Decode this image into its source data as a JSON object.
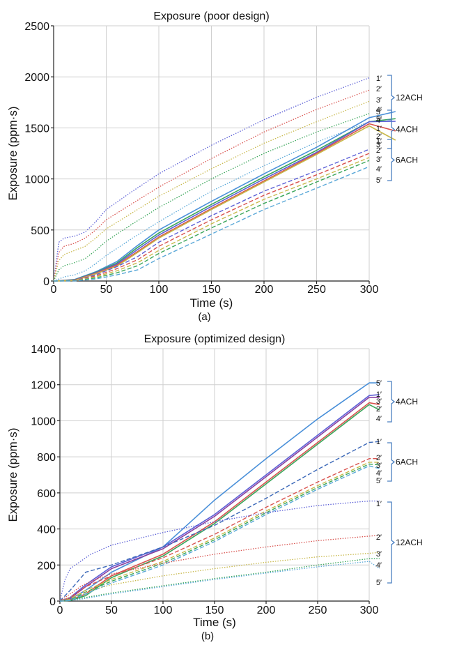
{
  "chart_data": [
    {
      "type": "line",
      "panel_label": "(a)",
      "title": "Exposure (poor design)",
      "xlabel": "Time (s)",
      "ylabel": "Exposure (ppm·s)",
      "xlim": [
        0,
        300
      ],
      "ylim": [
        0,
        2500
      ],
      "xticks": [
        0,
        50,
        100,
        150,
        200,
        250,
        300
      ],
      "yticks": [
        0,
        500,
        1000,
        1500,
        2000,
        2500
      ],
      "grid": true,
      "groups": [
        {
          "name": "12ACH",
          "style": "dotted"
        },
        {
          "name": "4ACH",
          "style": "solid"
        },
        {
          "name": "6ACH",
          "style": "dashed"
        }
      ],
      "series": [
        {
          "name": "1′",
          "group": "12ACH",
          "style": "dotted",
          "color": "#5b5fd6",
          "x": [
            0,
            5,
            10,
            20,
            30,
            40,
            50,
            75,
            100,
            150,
            200,
            250,
            300
          ],
          "y": [
            0,
            380,
            420,
            440,
            480,
            580,
            700,
            880,
            1050,
            1330,
            1580,
            1800,
            1990
          ]
        },
        {
          "name": "2′",
          "group": "12ACH",
          "style": "dotted",
          "color": "#d9534f",
          "x": [
            0,
            5,
            10,
            20,
            30,
            40,
            50,
            75,
            100,
            150,
            200,
            250,
            300
          ],
          "y": [
            0,
            280,
            340,
            370,
            420,
            500,
            600,
            760,
            920,
            1200,
            1460,
            1680,
            1870
          ]
        },
        {
          "name": "3′",
          "group": "12ACH",
          "style": "dotted",
          "color": "#c8b84a",
          "x": [
            0,
            5,
            10,
            20,
            30,
            40,
            50,
            75,
            100,
            150,
            200,
            250,
            300
          ],
          "y": [
            0,
            200,
            260,
            300,
            340,
            420,
            510,
            670,
            830,
            1100,
            1350,
            1560,
            1760
          ]
        },
        {
          "name": "4′",
          "group": "12ACH",
          "style": "dotted",
          "color": "#3aa65a",
          "x": [
            0,
            5,
            10,
            20,
            30,
            40,
            50,
            75,
            100,
            150,
            200,
            250,
            300
          ],
          "y": [
            0,
            110,
            150,
            180,
            220,
            300,
            390,
            560,
            720,
            1000,
            1250,
            1460,
            1640
          ]
        },
        {
          "name": "5′",
          "group": "12ACH",
          "style": "dotted",
          "color": "#5aa8d8",
          "x": [
            0,
            5,
            10,
            20,
            30,
            40,
            50,
            75,
            100,
            150,
            200,
            250,
            300
          ],
          "y": [
            0,
            20,
            40,
            60,
            100,
            170,
            250,
            420,
            580,
            880,
            1130,
            1360,
            1560
          ]
        },
        {
          "name": "5′",
          "group": "4ACH",
          "style": "solid",
          "color": "#4a90d9",
          "x": [
            0,
            20,
            40,
            60,
            80,
            100,
            150,
            200,
            250,
            300,
            325
          ],
          "y": [
            0,
            15,
            90,
            190,
            350,
            500,
            780,
            1050,
            1310,
            1600,
            1660
          ]
        },
        {
          "name": "4′",
          "group": "4ACH",
          "style": "solid",
          "color": "#3aa65a",
          "x": [
            0,
            20,
            40,
            60,
            80,
            100,
            150,
            200,
            250,
            300,
            325
          ],
          "y": [
            0,
            12,
            85,
            175,
            330,
            470,
            750,
            1020,
            1280,
            1560,
            1590
          ]
        },
        {
          "name": "1′",
          "group": "4ACH",
          "style": "solid",
          "color": "#5b5fd6",
          "x": [
            0,
            20,
            40,
            60,
            80,
            100,
            150,
            200,
            250,
            300,
            325
          ],
          "y": [
            0,
            10,
            80,
            165,
            310,
            450,
            730,
            1000,
            1260,
            1560,
            1565
          ]
        },
        {
          "name": "2′",
          "group": "4ACH",
          "style": "solid",
          "color": "#d9534f",
          "x": [
            0,
            20,
            40,
            60,
            80,
            100,
            150,
            200,
            250,
            300,
            325
          ],
          "y": [
            0,
            8,
            75,
            155,
            290,
            430,
            710,
            980,
            1250,
            1540,
            1470
          ]
        },
        {
          "name": "3′",
          "group": "4ACH",
          "style": "solid",
          "color": "#c8b84a",
          "x": [
            0,
            20,
            40,
            60,
            80,
            100,
            150,
            200,
            250,
            300,
            325
          ],
          "y": [
            0,
            5,
            70,
            145,
            280,
            420,
            700,
            970,
            1240,
            1520,
            1380
          ]
        },
        {
          "name": "1′",
          "group": "6ACH",
          "style": "dashed",
          "color": "#5b5fd6",
          "x": [
            0,
            20,
            40,
            60,
            80,
            100,
            150,
            200,
            250,
            300
          ],
          "y": [
            0,
            5,
            60,
            140,
            240,
            380,
            640,
            880,
            1080,
            1290
          ]
        },
        {
          "name": "2′",
          "group": "6ACH",
          "style": "dashed",
          "color": "#d9534f",
          "x": [
            0,
            20,
            40,
            60,
            80,
            100,
            150,
            200,
            250,
            300
          ],
          "y": [
            0,
            4,
            50,
            120,
            210,
            340,
            600,
            840,
            1040,
            1250
          ]
        },
        {
          "name": "3′",
          "group": "6ACH",
          "style": "dashed",
          "color": "#c8b84a",
          "x": [
            0,
            20,
            40,
            60,
            80,
            100,
            150,
            200,
            250,
            300
          ],
          "y": [
            0,
            3,
            40,
            100,
            180,
            300,
            560,
            800,
            1000,
            1210
          ]
        },
        {
          "name": "4′",
          "group": "6ACH",
          "style": "dashed",
          "color": "#3aa65a",
          "x": [
            0,
            20,
            40,
            60,
            80,
            100,
            150,
            200,
            250,
            300
          ],
          "y": [
            0,
            2,
            30,
            80,
            150,
            270,
            520,
            760,
            970,
            1180
          ]
        },
        {
          "name": "5′",
          "group": "6ACH",
          "style": "dashed",
          "color": "#5aa8d8",
          "x": [
            0,
            20,
            40,
            60,
            80,
            100,
            150,
            200,
            250,
            300
          ],
          "y": [
            0,
            1,
            20,
            60,
            110,
            220,
            460,
            700,
            910,
            1120
          ]
        }
      ]
    },
    {
      "type": "line",
      "panel_label": "(b)",
      "title": "Exposure (optimized design)",
      "xlabel": "Time (s)",
      "ylabel": "Exposure (ppm·s)",
      "xlim": [
        0,
        300
      ],
      "ylim": [
        0,
        1400
      ],
      "xticks": [
        0,
        50,
        100,
        150,
        200,
        250,
        300
      ],
      "yticks": [
        0,
        200,
        400,
        600,
        800,
        1000,
        1200,
        1400
      ],
      "grid": true,
      "groups": [
        {
          "name": "4ACH",
          "style": "solid"
        },
        {
          "name": "6ACH",
          "style": "dashed"
        },
        {
          "name": "12ACH",
          "style": "dotted"
        }
      ],
      "series": [
        {
          "name": "5′",
          "group": "4ACH",
          "style": "solid",
          "color": "#4a90d9",
          "x": [
            0,
            10,
            25,
            50,
            100,
            150,
            200,
            250,
            300,
            310
          ],
          "y": [
            0,
            10,
            60,
            160,
            300,
            560,
            790,
            1010,
            1210,
            1210
          ]
        },
        {
          "name": "1′",
          "group": "4ACH",
          "style": "solid",
          "color": "#5b5fd6",
          "x": [
            0,
            10,
            25,
            50,
            100,
            150,
            200,
            250,
            300,
            310
          ],
          "y": [
            0,
            20,
            90,
            190,
            300,
            480,
            700,
            920,
            1140,
            1145
          ]
        },
        {
          "name": "3′",
          "group": "4ACH",
          "style": "solid",
          "color": "#8a3fa0",
          "x": [
            0,
            10,
            25,
            50,
            100,
            150,
            200,
            250,
            300,
            310
          ],
          "y": [
            0,
            15,
            80,
            180,
            290,
            470,
            690,
            910,
            1130,
            1130
          ]
        },
        {
          "name": "2′",
          "group": "4ACH",
          "style": "solid",
          "color": "#d9534f",
          "x": [
            0,
            10,
            25,
            50,
            100,
            150,
            200,
            250,
            300,
            310
          ],
          "y": [
            0,
            5,
            40,
            140,
            260,
            440,
            660,
            880,
            1100,
            1090
          ]
        },
        {
          "name": "4′",
          "group": "4ACH",
          "style": "solid",
          "color": "#3aa65a",
          "x": [
            0,
            10,
            25,
            50,
            100,
            150,
            200,
            250,
            300,
            310
          ],
          "y": [
            0,
            3,
            30,
            130,
            250,
            430,
            650,
            870,
            1090,
            1060
          ]
        },
        {
          "name": "1′",
          "group": "6ACH",
          "style": "dashed",
          "color": "#3b68b8",
          "x": [
            0,
            10,
            25,
            50,
            100,
            150,
            200,
            250,
            300,
            310
          ],
          "y": [
            0,
            60,
            160,
            200,
            300,
            420,
            570,
            730,
            880,
            885
          ]
        },
        {
          "name": "2′",
          "group": "6ACH",
          "style": "dashed",
          "color": "#d9534f",
          "x": [
            0,
            10,
            25,
            50,
            100,
            150,
            200,
            250,
            300,
            310
          ],
          "y": [
            0,
            20,
            80,
            140,
            240,
            370,
            520,
            660,
            790,
            790
          ]
        },
        {
          "name": "3′",
          "group": "6ACH",
          "style": "dashed",
          "color": "#c8b84a",
          "x": [
            0,
            10,
            25,
            50,
            100,
            150,
            200,
            250,
            300,
            310
          ],
          "y": [
            0,
            10,
            60,
            120,
            220,
            350,
            500,
            640,
            770,
            770
          ]
        },
        {
          "name": "4′",
          "group": "6ACH",
          "style": "dashed",
          "color": "#3aa65a",
          "x": [
            0,
            10,
            25,
            50,
            100,
            150,
            200,
            250,
            300,
            310
          ],
          "y": [
            0,
            5,
            50,
            110,
            210,
            340,
            490,
            630,
            760,
            755
          ]
        },
        {
          "name": "5′",
          "group": "6ACH",
          "style": "dashed",
          "color": "#5aa8d8",
          "x": [
            0,
            10,
            25,
            50,
            100,
            150,
            200,
            250,
            300,
            310
          ],
          "y": [
            0,
            3,
            40,
            100,
            200,
            330,
            480,
            620,
            750,
            735
          ]
        },
        {
          "name": "1′",
          "group": "12ACH",
          "style": "dotted",
          "color": "#5b5fd6",
          "x": [
            0,
            5,
            10,
            20,
            30,
            50,
            100,
            150,
            200,
            250,
            300,
            310
          ],
          "y": [
            0,
            120,
            180,
            220,
            260,
            310,
            380,
            440,
            490,
            530,
            555,
            555
          ]
        },
        {
          "name": "2′",
          "group": "12ACH",
          "style": "dotted",
          "color": "#d9534f",
          "x": [
            0,
            10,
            20,
            30,
            50,
            100,
            150,
            200,
            250,
            300,
            310
          ],
          "y": [
            0,
            40,
            80,
            110,
            150,
            210,
            260,
            300,
            335,
            360,
            365
          ]
        },
        {
          "name": "3′",
          "group": "12ACH",
          "style": "dotted",
          "color": "#c8b84a",
          "x": [
            0,
            10,
            20,
            30,
            50,
            100,
            150,
            200,
            250,
            300,
            310
          ],
          "y": [
            0,
            20,
            40,
            60,
            90,
            140,
            180,
            215,
            245,
            265,
            270
          ]
        },
        {
          "name": "4′",
          "group": "12ACH",
          "style": "dotted",
          "color": "#3aa65a",
          "x": [
            0,
            10,
            20,
            30,
            50,
            100,
            150,
            200,
            250,
            300,
            310
          ],
          "y": [
            0,
            5,
            15,
            25,
            45,
            85,
            125,
            160,
            200,
            235,
            235
          ]
        },
        {
          "name": "5′",
          "group": "12ACH",
          "style": "dotted",
          "color": "#5aa8d8",
          "x": [
            0,
            10,
            20,
            30,
            50,
            100,
            150,
            200,
            250,
            300,
            310
          ],
          "y": [
            0,
            3,
            10,
            20,
            40,
            80,
            120,
            155,
            190,
            220,
            180
          ]
        }
      ]
    }
  ]
}
